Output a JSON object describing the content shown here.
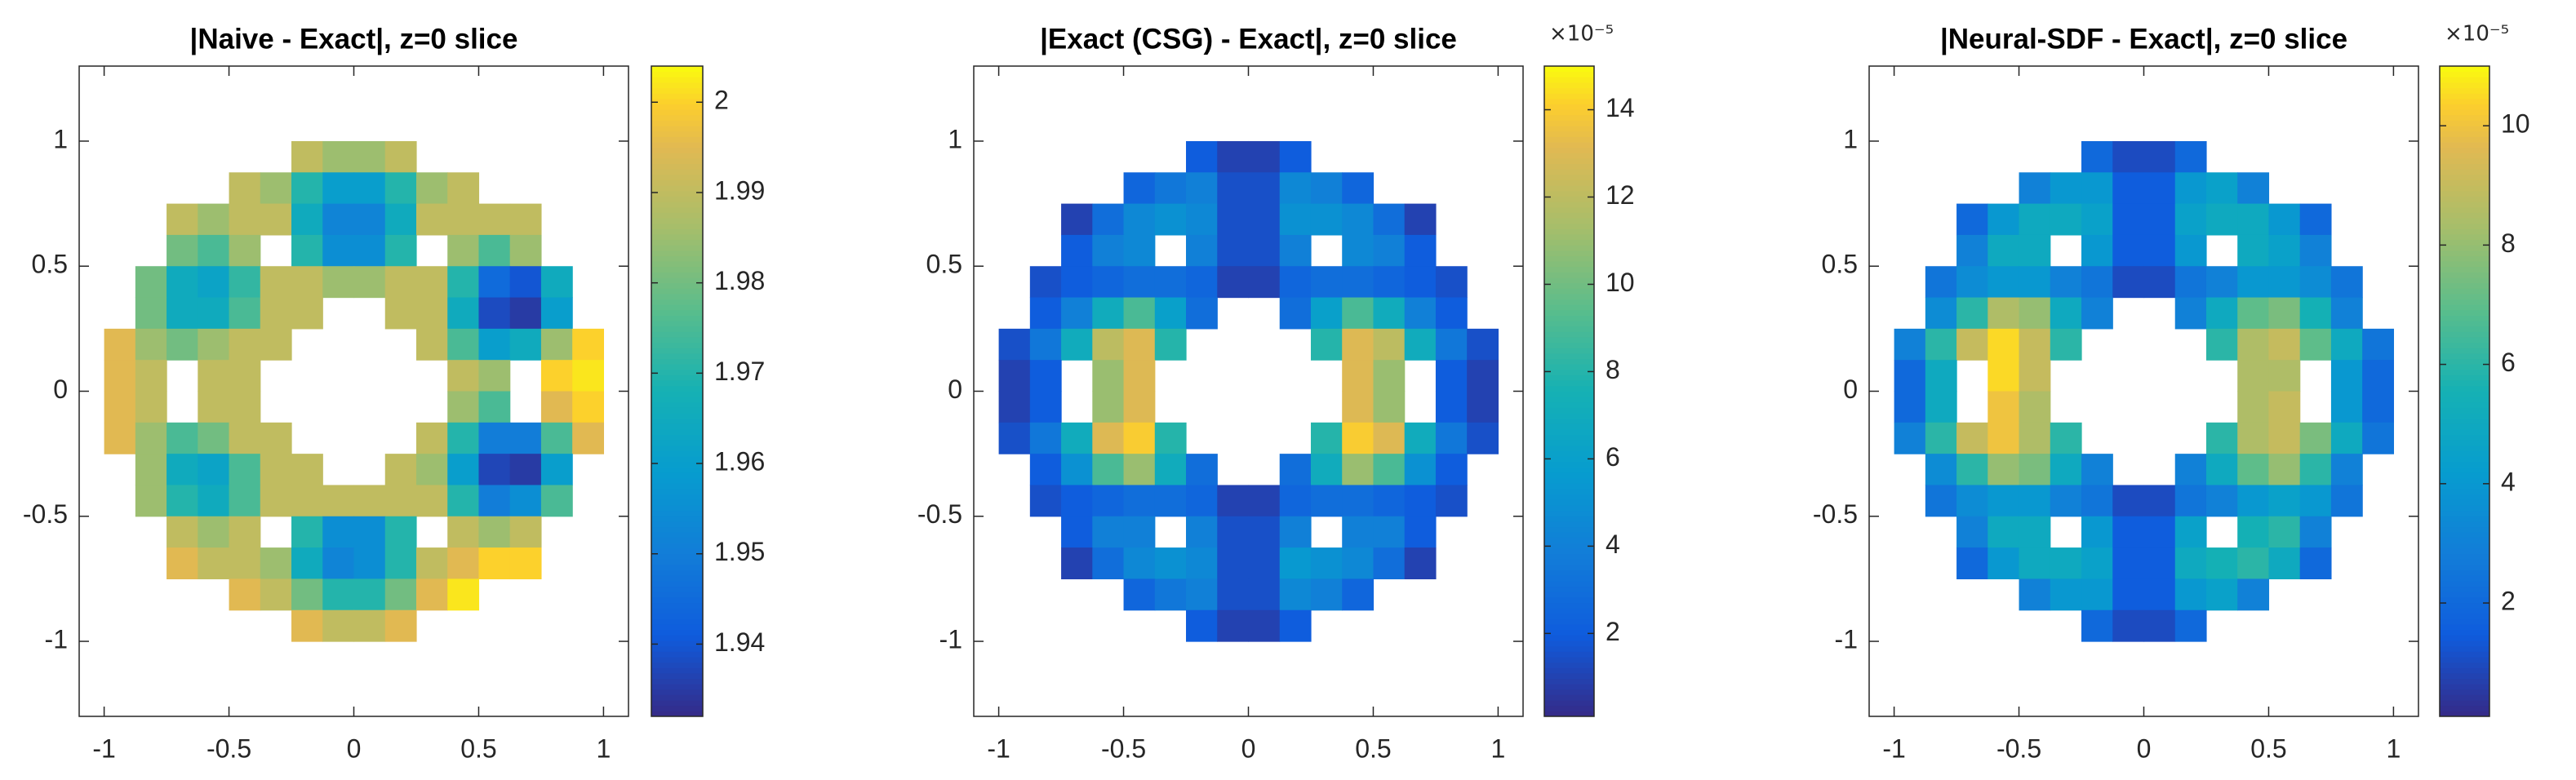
{
  "chart_data": [
    {
      "type": "heatmap",
      "title": "|Naive - Exact|, z=0 slice",
      "colormap": "parula",
      "x": [
        -0.9375,
        -0.8125,
        -0.6875,
        -0.5625,
        -0.4375,
        -0.3125,
        -0.1875,
        -0.0625,
        0.0625,
        0.1875,
        0.3125,
        0.4375,
        0.5625,
        0.6875,
        0.8125,
        0.9375
      ],
      "y": [
        0.9375,
        0.8125,
        0.6875,
        0.5625,
        0.4375,
        0.3125,
        0.1875,
        0.0625,
        -0.0625,
        -0.1875,
        -0.3125,
        -0.4375,
        -0.5625,
        -0.6875,
        -0.8125,
        -0.9375
      ],
      "z": [
        [
          null,
          null,
          null,
          null,
          null,
          null,
          1.99,
          1.985,
          1.985,
          1.99,
          null,
          null,
          null,
          null,
          null,
          null
        ],
        [
          null,
          null,
          null,
          null,
          1.99,
          1.985,
          1.97,
          1.96,
          1.96,
          1.97,
          1.985,
          1.99,
          null,
          null,
          null,
          null
        ],
        [
          null,
          null,
          1.99,
          1.985,
          1.99,
          1.99,
          1.965,
          1.952,
          1.952,
          1.965,
          1.99,
          1.99,
          1.99,
          1.99,
          null,
          null
        ],
        [
          null,
          null,
          1.98,
          1.975,
          1.985,
          null,
          1.97,
          1.955,
          1.955,
          1.97,
          null,
          1.985,
          1.975,
          1.985,
          null,
          null
        ],
        [
          null,
          1.98,
          1.965,
          1.962,
          1.972,
          1.99,
          1.99,
          1.985,
          1.985,
          1.99,
          1.99,
          1.97,
          1.945,
          1.94,
          1.965,
          null
        ],
        [
          null,
          1.98,
          1.965,
          1.965,
          1.975,
          1.99,
          1.99,
          null,
          null,
          1.99,
          1.99,
          1.965,
          1.938,
          1.935,
          1.96,
          null
        ],
        [
          1.995,
          1.985,
          1.98,
          1.985,
          1.99,
          1.99,
          null,
          null,
          null,
          null,
          1.99,
          1.975,
          1.96,
          1.965,
          1.985,
          2.0
        ],
        [
          1.995,
          1.99,
          null,
          1.99,
          1.99,
          null,
          null,
          null,
          null,
          null,
          null,
          1.99,
          1.985,
          null,
          2.0,
          2.002
        ],
        [
          1.995,
          1.99,
          null,
          1.99,
          1.99,
          null,
          null,
          null,
          null,
          null,
          null,
          1.985,
          1.975,
          null,
          1.995,
          2.0
        ],
        [
          1.995,
          1.985,
          1.975,
          1.98,
          1.99,
          1.99,
          null,
          null,
          null,
          null,
          1.99,
          1.97,
          1.95,
          1.95,
          1.975,
          1.995
        ],
        [
          null,
          1.985,
          1.965,
          1.962,
          1.975,
          1.99,
          1.99,
          null,
          null,
          1.99,
          1.985,
          1.96,
          1.937,
          1.935,
          1.96,
          null
        ],
        [
          null,
          1.985,
          1.97,
          1.965,
          1.975,
          1.99,
          1.99,
          1.99,
          1.99,
          1.99,
          1.99,
          1.97,
          1.95,
          1.955,
          1.975,
          null
        ],
        [
          null,
          null,
          1.99,
          1.985,
          1.99,
          null,
          1.97,
          1.955,
          1.955,
          1.97,
          null,
          1.99,
          1.985,
          1.99,
          null,
          null
        ],
        [
          null,
          null,
          1.995,
          1.99,
          1.99,
          1.985,
          1.965,
          1.952,
          1.955,
          1.97,
          1.99,
          1.995,
          2.0,
          2.0,
          null,
          null
        ],
        [
          null,
          null,
          null,
          null,
          1.995,
          1.99,
          1.98,
          1.97,
          1.97,
          1.98,
          1.995,
          2.002,
          null,
          null,
          null,
          null
        ],
        [
          null,
          null,
          null,
          null,
          null,
          null,
          1.995,
          1.99,
          1.99,
          1.995,
          null,
          null,
          null,
          null,
          null,
          null
        ]
      ],
      "xlim": [
        -1.1,
        1.1
      ],
      "ylim": [
        -1.3,
        1.3
      ],
      "xticks": [
        -1,
        -0.5,
        0,
        0.5,
        1
      ],
      "yticks": [
        -1,
        -0.5,
        0,
        0.5,
        1
      ],
      "clim": [
        1.932,
        2.004
      ],
      "cticks": [
        1.94,
        1.95,
        1.96,
        1.97,
        1.98,
        1.99,
        2
      ]
    },
    {
      "type": "heatmap",
      "title": "|Exact (CSG) - Exact|, z=0 slice",
      "colormap": "parula",
      "colorbar_exponent": "×10⁻⁵",
      "x": [
        -0.9375,
        -0.8125,
        -0.6875,
        -0.5625,
        -0.4375,
        -0.3125,
        -0.1875,
        -0.0625,
        0.0625,
        0.1875,
        0.3125,
        0.4375,
        0.5625,
        0.6875,
        0.8125,
        0.9375
      ],
      "y": [
        0.9375,
        0.8125,
        0.6875,
        0.5625,
        0.4375,
        0.3125,
        0.1875,
        0.0625,
        -0.0625,
        -0.1875,
        -0.3125,
        -0.4375,
        -0.5625,
        -0.6875,
        -0.8125,
        -0.9375
      ],
      "z": [
        [
          null,
          null,
          null,
          null,
          null,
          null,
          2,
          1,
          1,
          2,
          null,
          null,
          null,
          null,
          null,
          null
        ],
        [
          null,
          null,
          null,
          null,
          2.5,
          3.5,
          4,
          1.5,
          1.5,
          4.5,
          4,
          2.5,
          null,
          null,
          null,
          null
        ],
        [
          null,
          null,
          1,
          3,
          4.5,
          5,
          4.5,
          1.5,
          1.5,
          5,
          5,
          4.5,
          3,
          1,
          null,
          null
        ],
        [
          null,
          null,
          2,
          4,
          4.5,
          null,
          4,
          1.5,
          1.5,
          4,
          null,
          4.5,
          4,
          2,
          null,
          null
        ],
        [
          null,
          1.5,
          2,
          2.5,
          3,
          3,
          2.5,
          1,
          1,
          2.5,
          3,
          3,
          2.5,
          2,
          1.5,
          null
        ],
        [
          null,
          2,
          4,
          7,
          9,
          6,
          3,
          null,
          null,
          3,
          6,
          9,
          7,
          4,
          2,
          null
        ],
        [
          1.5,
          3.5,
          7,
          12,
          13,
          8,
          null,
          null,
          null,
          null,
          8,
          13,
          12,
          7,
          3.5,
          1.5
        ],
        [
          1,
          2,
          null,
          11,
          13,
          null,
          null,
          null,
          null,
          null,
          null,
          13,
          11,
          null,
          2,
          1
        ],
        [
          1,
          2,
          null,
          11,
          13,
          null,
          null,
          null,
          null,
          null,
          null,
          13,
          11,
          null,
          2,
          1
        ],
        [
          1.5,
          3.5,
          7,
          13,
          14,
          8,
          null,
          null,
          null,
          null,
          8,
          14,
          13,
          7,
          3.5,
          1.5
        ],
        [
          null,
          2,
          5,
          9,
          11,
          7,
          3,
          null,
          null,
          3,
          7,
          11,
          9,
          5,
          2,
          null
        ],
        [
          null,
          1.5,
          2,
          2.5,
          3,
          3,
          2.5,
          1,
          1,
          2.5,
          3,
          3,
          2.5,
          2,
          1.5,
          null
        ],
        [
          null,
          null,
          2,
          4,
          4,
          null,
          4,
          1.5,
          1.5,
          4,
          null,
          4,
          4,
          2,
          null,
          null
        ],
        [
          null,
          null,
          1,
          3,
          4.5,
          5,
          4.5,
          1.5,
          1.5,
          5.5,
          5,
          4.5,
          3,
          1,
          null,
          null
        ],
        [
          null,
          null,
          null,
          null,
          2.5,
          3.5,
          4,
          1.5,
          1.5,
          4.5,
          4,
          2.5,
          null,
          null,
          null,
          null
        ],
        [
          null,
          null,
          null,
          null,
          null,
          null,
          2,
          1,
          1,
          2,
          null,
          null,
          null,
          null,
          null,
          null
        ]
      ],
      "xlim": [
        -1.1,
        1.1
      ],
      "ylim": [
        -1.3,
        1.3
      ],
      "xticks": [
        -1,
        -0.5,
        0,
        0.5,
        1
      ],
      "yticks": [
        -1,
        -0.5,
        0,
        0.5,
        1
      ],
      "clim": [
        0.1,
        15
      ],
      "cticks": [
        2,
        4,
        6,
        8,
        10,
        12,
        14
      ]
    },
    {
      "type": "heatmap",
      "title": "|Neural-SDF - Exact|, z=0 slice",
      "colormap": "parula",
      "colorbar_exponent": "×10⁻⁵",
      "x": [
        -0.9375,
        -0.8125,
        -0.6875,
        -0.5625,
        -0.4375,
        -0.3125,
        -0.1875,
        -0.0625,
        0.0625,
        0.1875,
        0.3125,
        0.4375,
        0.5625,
        0.6875,
        0.8125,
        0.9375
      ],
      "y": [
        0.9375,
        0.8125,
        0.6875,
        0.5625,
        0.4375,
        0.3125,
        0.1875,
        0.0625,
        -0.0625,
        -0.1875,
        -0.3125,
        -0.4375,
        -0.5625,
        -0.6875,
        -0.8125,
        -0.9375
      ],
      "z": [
        [
          null,
          null,
          null,
          null,
          null,
          null,
          2,
          1,
          1,
          2,
          null,
          null,
          null,
          null,
          null,
          null
        ],
        [
          null,
          null,
          null,
          null,
          3,
          4,
          4,
          1.5,
          1.5,
          4,
          4.5,
          3,
          null,
          null,
          null,
          null
        ],
        [
          null,
          null,
          2,
          4,
          5,
          5,
          4.5,
          1.5,
          1.5,
          4.5,
          5,
          5,
          4,
          2,
          null,
          null
        ],
        [
          null,
          null,
          3,
          5,
          5,
          null,
          4,
          1.5,
          1.5,
          4,
          null,
          5,
          4.5,
          3,
          null,
          null
        ],
        [
          null,
          2.5,
          3.5,
          4,
          4,
          3,
          2.5,
          1,
          1,
          2.5,
          3,
          4,
          4,
          3.5,
          2.5,
          null
        ],
        [
          null,
          3.5,
          6,
          8.5,
          8,
          5,
          3,
          null,
          null,
          3,
          5,
          7,
          7.5,
          5.5,
          3,
          null
        ],
        [
          3,
          6,
          9,
          10.5,
          9,
          6,
          null,
          null,
          null,
          null,
          6,
          8.5,
          9,
          7,
          5,
          2.5
        ],
        [
          2,
          5,
          null,
          10.5,
          9,
          null,
          null,
          null,
          null,
          null,
          null,
          8.5,
          8.5,
          null,
          4,
          2
        ],
        [
          2,
          5,
          null,
          10,
          8.5,
          null,
          null,
          null,
          null,
          null,
          null,
          8.5,
          9,
          null,
          4,
          2
        ],
        [
          3,
          6,
          9,
          10,
          8.5,
          6,
          null,
          null,
          null,
          null,
          6,
          8.5,
          9,
          7.5,
          5,
          2.5
        ],
        [
          null,
          3.5,
          6,
          8,
          7.5,
          5,
          3,
          null,
          null,
          3,
          5,
          7,
          8,
          6,
          3,
          null
        ],
        [
          null,
          2.5,
          3.5,
          4,
          4,
          3,
          2.5,
          1,
          1,
          2.5,
          3,
          4,
          4.5,
          4,
          2.5,
          null
        ],
        [
          null,
          null,
          3,
          5,
          5,
          null,
          4,
          1.5,
          1.5,
          4.5,
          null,
          5.5,
          6,
          3,
          null,
          null
        ],
        [
          null,
          null,
          2,
          4,
          5,
          5,
          4.5,
          1.5,
          1.5,
          5,
          5.5,
          6,
          5,
          2,
          null,
          null
        ],
        [
          null,
          null,
          null,
          null,
          3,
          4,
          4,
          1.5,
          1.5,
          4,
          4.5,
          3,
          null,
          null,
          null,
          null
        ],
        [
          null,
          null,
          null,
          null,
          null,
          null,
          2,
          1,
          1,
          2,
          null,
          null,
          null,
          null,
          null,
          null
        ]
      ],
      "xlim": [
        -1.1,
        1.1
      ],
      "ylim": [
        -1.3,
        1.3
      ],
      "xticks": [
        -1,
        -0.5,
        0,
        0.5,
        1
      ],
      "yticks": [
        -1,
        -0.5,
        0,
        0.5,
        1
      ],
      "clim": [
        0.1,
        11
      ],
      "cticks": [
        2,
        4,
        6,
        8,
        10
      ]
    }
  ]
}
